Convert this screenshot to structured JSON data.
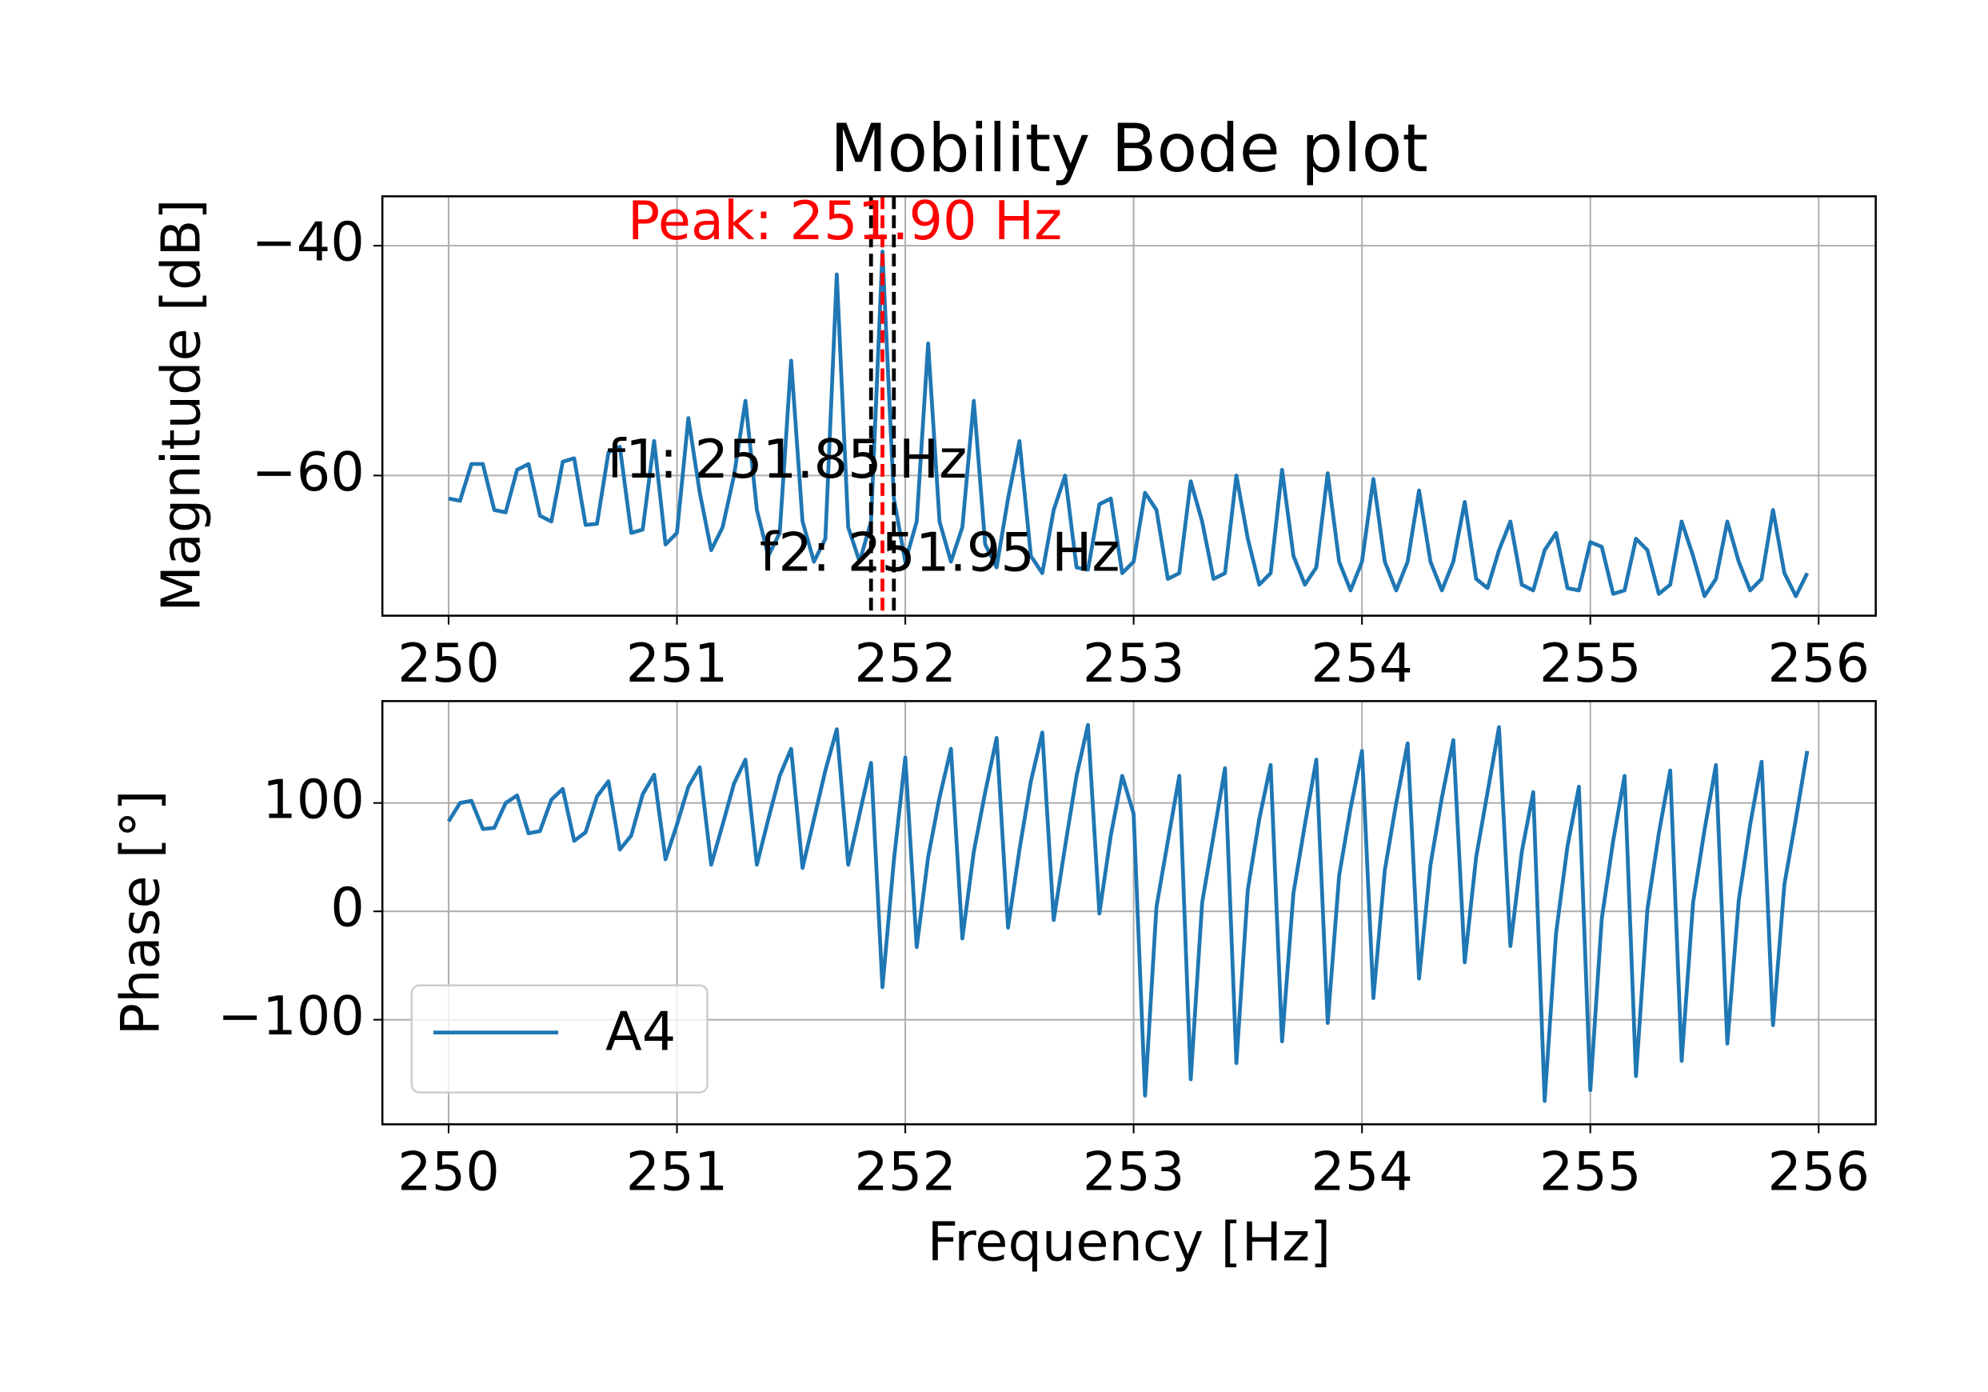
{
  "chart_data": [
    {
      "type": "line",
      "title": "Mobility Bode plot",
      "ylabel": "Magnitude [dB]",
      "grid": true,
      "x": [
        250,
        250.05,
        250.1,
        250.15,
        250.2,
        250.25,
        250.3,
        250.35,
        250.4,
        250.45,
        250.5,
        250.55,
        250.6,
        250.65,
        250.7,
        250.75,
        250.8,
        250.85,
        250.9,
        250.95,
        251,
        251.05,
        251.1,
        251.15,
        251.2,
        251.25,
        251.3,
        251.35,
        251.4,
        251.45,
        251.5,
        251.55,
        251.6,
        251.65,
        251.7,
        251.75,
        251.8,
        251.85,
        251.9,
        251.95,
        252,
        252.05,
        252.1,
        252.15,
        252.2,
        252.25,
        252.3,
        252.35,
        252.4,
        252.45,
        252.5,
        252.55,
        252.6,
        252.65,
        252.7,
        252.75,
        252.8,
        252.85,
        252.9,
        252.95,
        253,
        253.05,
        253.1,
        253.15,
        253.2,
        253.25,
        253.3,
        253.35,
        253.4,
        253.45,
        253.5,
        253.55,
        253.6,
        253.65,
        253.7,
        253.75,
        253.8,
        253.85,
        253.9,
        253.95,
        254,
        254.05,
        254.1,
        254.15,
        254.2,
        254.25,
        254.3,
        254.35,
        254.4,
        254.45,
        254.5,
        254.55,
        254.6,
        254.65,
        254.7,
        254.75,
        254.8,
        254.85,
        254.9,
        254.95,
        255,
        255.05,
        255.1,
        255.15,
        255.2,
        255.25,
        255.3,
        255.35,
        255.4,
        255.45,
        255.5,
        255.55,
        255.6,
        255.65,
        255.7,
        255.75,
        255.8,
        255.85,
        255.9,
        255.95
      ],
      "series": [
        {
          "color": "#1f77b4",
          "values": [
            -62,
            -62.2,
            -59,
            -59,
            -63,
            -63.2,
            -59.5,
            -59,
            -63.5,
            -64,
            -58.8,
            -58.5,
            -64.3,
            -64.2,
            -58,
            -57.5,
            -65,
            -64.7,
            -57,
            -66,
            -65,
            -55,
            -61.5,
            -66.5,
            -64.5,
            -60,
            -53.5,
            -63,
            -67,
            -65,
            -50,
            -64,
            -67.5,
            -65.5,
            -42.5,
            -64.5,
            -67.5,
            -64,
            -40.5,
            -62,
            -67.5,
            -64,
            -48.5,
            -64,
            -67.5,
            -64.5,
            -53.5,
            -66,
            -68,
            -62,
            -57,
            -67,
            -68.5,
            -63,
            -60,
            -68,
            -68.2,
            -62.5,
            -62,
            -68.5,
            -67.5,
            -61.5,
            -63,
            -69,
            -68.5,
            -60.5,
            -64,
            -69,
            -68.5,
            -60,
            -65.5,
            -69.5,
            -68.5,
            -59.5,
            -67,
            -69.5,
            -68,
            -59.8,
            -67.5,
            -70,
            -67.5,
            -60.3,
            -67.5,
            -70,
            -67.5,
            -61.3,
            -67.5,
            -70,
            -67.5,
            -62.3,
            -69,
            -69.8,
            -66.5,
            -64,
            -69.5,
            -70,
            -66.5,
            -65,
            -69.8,
            -70,
            -65.8,
            -66.2,
            -70.3,
            -70,
            -65.5,
            -66.5,
            -70.3,
            -69.5,
            -64,
            -67,
            -70.5,
            -69,
            -64,
            -67.5,
            -70,
            -69,
            -63,
            -68.5,
            -70.5,
            -68.5
          ]
        }
      ],
      "xlim": [
        249.71,
        256.25
      ],
      "xticks": [
        250,
        251,
        252,
        253,
        254,
        255,
        256
      ],
      "ylim": [
        -72.2,
        -35.7
      ],
      "yticks": [
        {
          "value": -40,
          "label": "−40"
        },
        {
          "value": -60,
          "label": "−60"
        }
      ],
      "vlines": [
        {
          "x": 251.85,
          "color": "black"
        },
        {
          "x": 251.9,
          "color": "red"
        },
        {
          "x": 251.95,
          "color": "black"
        }
      ],
      "annotations": [
        {
          "text": "Peak: 251.90 Hz",
          "color": "red"
        },
        {
          "text": "f1: 251.85 Hz",
          "color": "black"
        },
        {
          "text": "f2: 251.95 Hz",
          "color": "black"
        }
      ]
    },
    {
      "type": "line",
      "ylabel": "Phase [°]",
      "xlabel": "Frequency [Hz]",
      "grid": true,
      "legend": "lower left",
      "x": [
        250,
        250.05,
        250.1,
        250.15,
        250.2,
        250.25,
        250.3,
        250.35,
        250.4,
        250.45,
        250.5,
        250.55,
        250.6,
        250.65,
        250.7,
        250.75,
        250.8,
        250.85,
        250.9,
        250.95,
        251,
        251.05,
        251.1,
        251.15,
        251.2,
        251.25,
        251.3,
        251.35,
        251.4,
        251.45,
        251.5,
        251.55,
        251.6,
        251.65,
        251.7,
        251.75,
        251.8,
        251.85,
        251.9,
        251.95,
        252,
        252.05,
        252.1,
        252.15,
        252.2,
        252.25,
        252.3,
        252.35,
        252.4,
        252.45,
        252.5,
        252.55,
        252.6,
        252.65,
        252.7,
        252.75,
        252.8,
        252.85,
        252.9,
        252.95,
        253,
        253.05,
        253.1,
        253.15,
        253.2,
        253.25,
        253.3,
        253.35,
        253.4,
        253.45,
        253.5,
        253.55,
        253.6,
        253.65,
        253.7,
        253.75,
        253.8,
        253.85,
        253.9,
        253.95,
        254,
        254.05,
        254.1,
        254.15,
        254.2,
        254.25,
        254.3,
        254.35,
        254.4,
        254.45,
        254.5,
        254.55,
        254.6,
        254.65,
        254.7,
        254.75,
        254.8,
        254.85,
        254.9,
        254.95,
        255,
        255.05,
        255.1,
        255.15,
        255.2,
        255.25,
        255.3,
        255.35,
        255.4,
        255.45,
        255.5,
        255.55,
        255.6,
        255.65,
        255.7,
        255.75,
        255.8,
        255.85,
        255.9,
        255.95
      ],
      "series": [
        {
          "name": "A4",
          "color": "#1f77b4",
          "values": [
            83,
            100,
            102,
            76,
            77,
            100,
            107,
            72,
            74,
            103,
            113,
            65,
            73,
            106,
            120,
            57,
            70,
            108,
            126,
            48,
            80,
            115,
            133,
            43,
            80,
            118,
            140,
            43,
            85,
            125,
            150,
            40,
            85,
            130,
            168,
            43,
            90,
            137,
            -70,
            47,
            142,
            -33,
            50,
            105,
            150,
            -25,
            55,
            110,
            160,
            -15,
            57,
            120,
            165,
            -8,
            60,
            125,
            172,
            -2,
            70,
            125,
            90,
            -170,
            4,
            65,
            125,
            -155,
            8,
            70,
            132,
            -140,
            20,
            85,
            135,
            -120,
            17,
            80,
            140,
            -103,
            33,
            95,
            148,
            -80,
            38,
            100,
            155,
            -62,
            43,
            105,
            158,
            -47,
            50,
            110,
            170,
            -32,
            55,
            110,
            -175,
            -20,
            60,
            115,
            -165,
            -7,
            65,
            125,
            -152,
            2,
            72,
            130,
            -138,
            8,
            75,
            135,
            -122,
            10,
            80,
            138,
            -105,
            25,
            85,
            148
          ]
        }
      ],
      "xlim": [
        249.71,
        256.25
      ],
      "xticks": [
        250,
        251,
        252,
        253,
        254,
        255,
        256
      ],
      "ylim": [
        -196.5,
        194
      ],
      "yticks": [
        100,
        0,
        {
          "value": -100,
          "label": "−100"
        }
      ]
    }
  ]
}
